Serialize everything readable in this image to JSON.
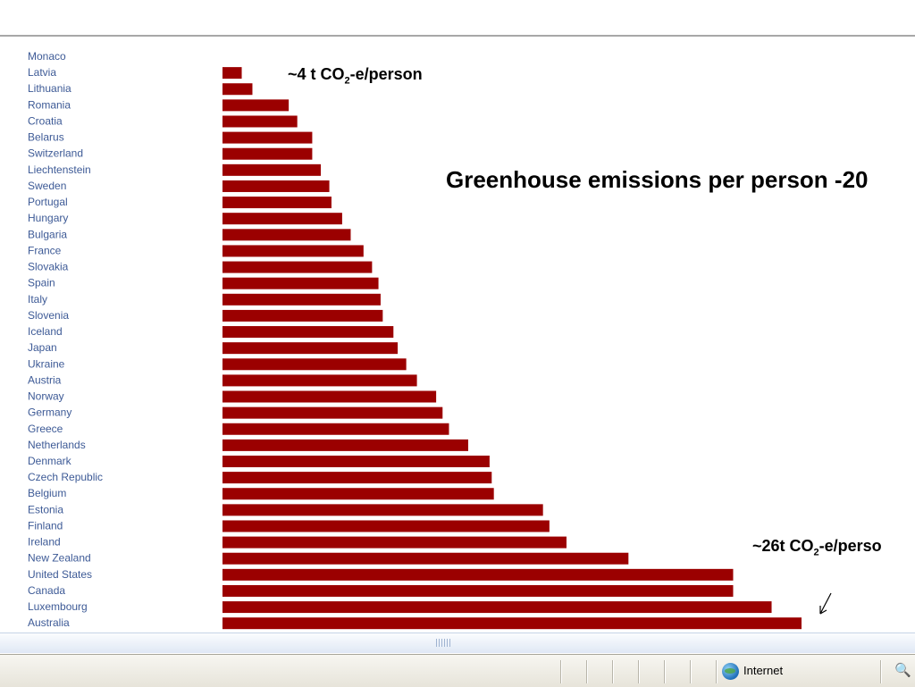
{
  "chart_data": {
    "type": "bar",
    "orientation": "horizontal",
    "title": "Greenhouse emissions per person -20",
    "categories": [
      "Monaco",
      "Latvia",
      "Lithuania",
      "Romania",
      "Croatia",
      "Belarus",
      "Switzerland",
      "Liechtenstein",
      "Sweden",
      "Portugal",
      "Hungary",
      "Bulgaria",
      "France",
      "Slovakia",
      "Spain",
      "Italy",
      "Slovenia",
      "Iceland",
      "Japan",
      "Ukraine",
      "Austria",
      "Norway",
      "Germany",
      "Greece",
      "Netherlands",
      "Denmark",
      "Czech Republic",
      "Belgium",
      "Estonia",
      "Finland",
      "Ireland",
      "New Zealand",
      "United States",
      "Canada",
      "Luxembourg",
      "Australia"
    ],
    "values": [
      0,
      0.9,
      1.4,
      3.1,
      3.5,
      4.2,
      4.2,
      4.6,
      5.0,
      5.1,
      5.6,
      6.0,
      6.6,
      7.0,
      7.3,
      7.4,
      7.5,
      8.0,
      8.2,
      8.6,
      9.1,
      10.0,
      10.3,
      10.6,
      11.5,
      12.5,
      12.6,
      12.7,
      15.0,
      15.3,
      16.1,
      19.0,
      23.9,
      23.9,
      25.7,
      27.1
    ],
    "units": "t CO2-e/person",
    "xlim": [
      0,
      27.1
    ],
    "bar_color": "#9b0000",
    "label_color": "#3d5a96",
    "grid": false,
    "legend": "none",
    "annotations": [
      {
        "id": "low",
        "prefix": "~4 t CO",
        "sub": "2",
        "suffix": "-e/person"
      },
      {
        "id": "high",
        "prefix": "~26t CO",
        "sub": "2",
        "suffix": "-e/perso"
      }
    ],
    "arrow_symbol": "↙"
  },
  "statusbar": {
    "zone_label": "Internet",
    "zoom_icon": "zoom-magnifier-icon",
    "zone_icon": "globe-icon",
    "zoom_symbol": "🔍"
  }
}
